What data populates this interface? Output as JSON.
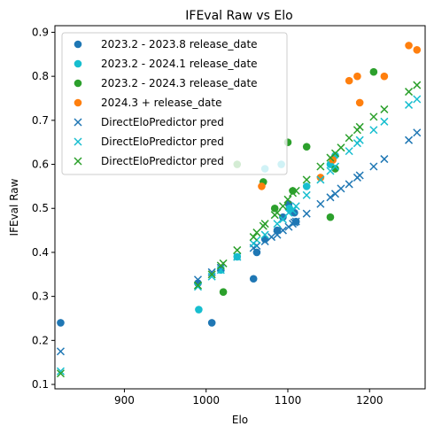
{
  "chart_data": {
    "type": "scatter",
    "title": "IFEval Raw vs Elo",
    "xlabel": "Elo",
    "ylabel": "IFEval Raw",
    "xlim": [
      815,
      1268
    ],
    "ylim": [
      0.09,
      0.915
    ],
    "xticks": [
      900,
      1000,
      1100,
      1200
    ],
    "yticks": [
      0.1,
      0.2,
      0.3,
      0.4,
      0.5,
      0.6,
      0.7,
      0.8,
      0.9
    ],
    "grid": false,
    "legend_position": "top-left",
    "series": [
      {
        "name": "2023.2 - 2023.8 release_date",
        "marker": "circle",
        "color": "#1f77b4",
        "points": [
          {
            "x": 822,
            "y": 0.24
          },
          {
            "x": 990,
            "y": 0.33
          },
          {
            "x": 1007,
            "y": 0.24
          },
          {
            "x": 1058,
            "y": 0.34
          },
          {
            "x": 1062,
            "y": 0.4
          },
          {
            "x": 1072,
            "y": 0.43
          },
          {
            "x": 1087,
            "y": 0.45
          },
          {
            "x": 1094,
            "y": 0.48
          },
          {
            "x": 1101,
            "y": 0.51
          },
          {
            "x": 1108,
            "y": 0.49
          },
          {
            "x": 1110,
            "y": 0.47
          }
        ]
      },
      {
        "name": "2023.2 - 2024.1 release_date",
        "marker": "circle",
        "color": "#17becf",
        "points": [
          {
            "x": 991,
            "y": 0.27
          },
          {
            "x": 1018,
            "y": 0.36
          },
          {
            "x": 1038,
            "y": 0.39
          },
          {
            "x": 1072,
            "y": 0.59
          },
          {
            "x": 1092,
            "y": 0.6
          },
          {
            "x": 1102,
            "y": 0.5
          },
          {
            "x": 1123,
            "y": 0.55
          },
          {
            "x": 1152,
            "y": 0.6
          },
          {
            "x": 1158,
            "y": 0.62
          }
        ]
      },
      {
        "name": "2023.2 - 2024.3 release_date",
        "marker": "circle",
        "color": "#2ca02c",
        "points": [
          {
            "x": 1021,
            "y": 0.31
          },
          {
            "x": 1038,
            "y": 0.6
          },
          {
            "x": 1070,
            "y": 0.56
          },
          {
            "x": 1084,
            "y": 0.5
          },
          {
            "x": 1100,
            "y": 0.65
          },
          {
            "x": 1106,
            "y": 0.54
          },
          {
            "x": 1123,
            "y": 0.64
          },
          {
            "x": 1152,
            "y": 0.48
          },
          {
            "x": 1158,
            "y": 0.59
          },
          {
            "x": 1205,
            "y": 0.81
          }
        ]
      },
      {
        "name": "2024.3 + release_date",
        "marker": "circle",
        "color": "#ff7f0e",
        "points": [
          {
            "x": 1068,
            "y": 0.55
          },
          {
            "x": 1140,
            "y": 0.57
          },
          {
            "x": 1155,
            "y": 0.61
          },
          {
            "x": 1175,
            "y": 0.79
          },
          {
            "x": 1185,
            "y": 0.8
          },
          {
            "x": 1188,
            "y": 0.74
          },
          {
            "x": 1218,
            "y": 0.8
          },
          {
            "x": 1248,
            "y": 0.87
          },
          {
            "x": 1258,
            "y": 0.86
          }
        ]
      },
      {
        "name": "DirectEloPredictor pred",
        "marker": "x",
        "color": "#1f77b4",
        "points": [
          {
            "x": 822,
            "y": 0.175
          },
          {
            "x": 990,
            "y": 0.338
          },
          {
            "x": 1007,
            "y": 0.355
          },
          {
            "x": 1018,
            "y": 0.365
          },
          {
            "x": 1038,
            "y": 0.39
          },
          {
            "x": 1058,
            "y": 0.41
          },
          {
            "x": 1062,
            "y": 0.415
          },
          {
            "x": 1072,
            "y": 0.425
          },
          {
            "x": 1080,
            "y": 0.435
          },
          {
            "x": 1087,
            "y": 0.44
          },
          {
            "x": 1094,
            "y": 0.45
          },
          {
            "x": 1101,
            "y": 0.458
          },
          {
            "x": 1106,
            "y": 0.465
          },
          {
            "x": 1108,
            "y": 0.468
          },
          {
            "x": 1110,
            "y": 0.47
          },
          {
            "x": 1123,
            "y": 0.488
          },
          {
            "x": 1140,
            "y": 0.51
          },
          {
            "x": 1152,
            "y": 0.525
          },
          {
            "x": 1158,
            "y": 0.533
          },
          {
            "x": 1165,
            "y": 0.545
          },
          {
            "x": 1175,
            "y": 0.555
          },
          {
            "x": 1185,
            "y": 0.57
          },
          {
            "x": 1188,
            "y": 0.575
          },
          {
            "x": 1205,
            "y": 0.595
          },
          {
            "x": 1218,
            "y": 0.612
          },
          {
            "x": 1248,
            "y": 0.655
          },
          {
            "x": 1258,
            "y": 0.672
          }
        ]
      },
      {
        "name": "DirectEloPredictor pred",
        "marker": "x",
        "color": "#17becf",
        "points": [
          {
            "x": 822,
            "y": 0.13
          },
          {
            "x": 990,
            "y": 0.322
          },
          {
            "x": 1007,
            "y": 0.345
          },
          {
            "x": 1018,
            "y": 0.36
          },
          {
            "x": 1038,
            "y": 0.39
          },
          {
            "x": 1058,
            "y": 0.42
          },
          {
            "x": 1062,
            "y": 0.428
          },
          {
            "x": 1072,
            "y": 0.44
          },
          {
            "x": 1087,
            "y": 0.465
          },
          {
            "x": 1094,
            "y": 0.475
          },
          {
            "x": 1101,
            "y": 0.49
          },
          {
            "x": 1106,
            "y": 0.495
          },
          {
            "x": 1110,
            "y": 0.505
          },
          {
            "x": 1123,
            "y": 0.53
          },
          {
            "x": 1140,
            "y": 0.565
          },
          {
            "x": 1152,
            "y": 0.585
          },
          {
            "x": 1158,
            "y": 0.595
          },
          {
            "x": 1175,
            "y": 0.63
          },
          {
            "x": 1185,
            "y": 0.648
          },
          {
            "x": 1188,
            "y": 0.655
          },
          {
            "x": 1205,
            "y": 0.678
          },
          {
            "x": 1218,
            "y": 0.697
          },
          {
            "x": 1248,
            "y": 0.735
          },
          {
            "x": 1258,
            "y": 0.748
          }
        ]
      },
      {
        "name": "DirectEloPredictor pred",
        "marker": "x",
        "color": "#2ca02c",
        "points": [
          {
            "x": 822,
            "y": 0.125
          },
          {
            "x": 990,
            "y": 0.325
          },
          {
            "x": 1007,
            "y": 0.35
          },
          {
            "x": 1018,
            "y": 0.37
          },
          {
            "x": 1021,
            "y": 0.375
          },
          {
            "x": 1038,
            "y": 0.405
          },
          {
            "x": 1058,
            "y": 0.435
          },
          {
            "x": 1062,
            "y": 0.445
          },
          {
            "x": 1070,
            "y": 0.46
          },
          {
            "x": 1072,
            "y": 0.465
          },
          {
            "x": 1084,
            "y": 0.485
          },
          {
            "x": 1087,
            "y": 0.49
          },
          {
            "x": 1094,
            "y": 0.505
          },
          {
            "x": 1100,
            "y": 0.52
          },
          {
            "x": 1106,
            "y": 0.535
          },
          {
            "x": 1110,
            "y": 0.54
          },
          {
            "x": 1123,
            "y": 0.565
          },
          {
            "x": 1140,
            "y": 0.595
          },
          {
            "x": 1152,
            "y": 0.615
          },
          {
            "x": 1158,
            "y": 0.625
          },
          {
            "x": 1165,
            "y": 0.638
          },
          {
            "x": 1175,
            "y": 0.66
          },
          {
            "x": 1185,
            "y": 0.678
          },
          {
            "x": 1188,
            "y": 0.685
          },
          {
            "x": 1205,
            "y": 0.708
          },
          {
            "x": 1218,
            "y": 0.725
          },
          {
            "x": 1248,
            "y": 0.765
          },
          {
            "x": 1258,
            "y": 0.78
          }
        ]
      }
    ]
  }
}
